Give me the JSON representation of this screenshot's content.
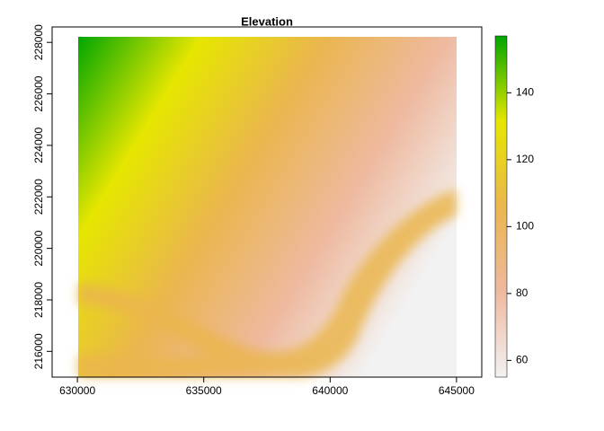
{
  "chart_data": {
    "type": "raster",
    "title": "Elevation",
    "xlim": [
      629000,
      646000
    ],
    "xticks": [
      630000,
      635000,
      640000,
      645000
    ],
    "ylim": [
      215000,
      228600
    ],
    "yticks": [
      216000,
      218000,
      220000,
      222000,
      224000,
      226000,
      228000
    ],
    "colorbar": {
      "lim": [
        55,
        157
      ],
      "ticks": [
        60,
        80,
        100,
        120,
        140
      ],
      "colors": [
        "#F2F2F2",
        "#EEB99F",
        "#EAB64E",
        "#E6E600",
        "#00A600"
      ]
    }
  }
}
